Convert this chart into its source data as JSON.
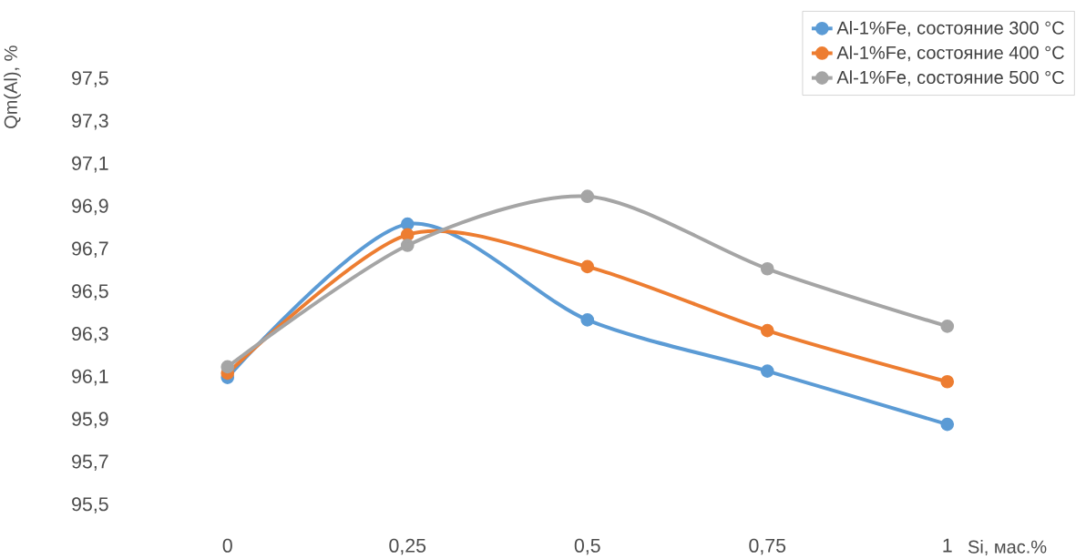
{
  "chart_data": {
    "type": "line",
    "xlabel": "Si, мас.%",
    "ylabel": "Qm(Al), %",
    "categories": [
      "0",
      "0,25",
      "0,5",
      "0,75",
      "1"
    ],
    "series": [
      {
        "name": "Al-1%Fe, состояние 300 °C",
        "color": "#5b9bd5",
        "values": [
          96.1,
          96.82,
          96.37,
          96.13,
          95.88
        ]
      },
      {
        "name": "Al-1%Fe, состояние 400 °C",
        "color": "#ed7d31",
        "values": [
          96.12,
          96.77,
          96.62,
          96.32,
          96.08
        ]
      },
      {
        "name": "Al-1%Fe, состояние 500 °C",
        "color": "#a5a5a5",
        "values": [
          96.15,
          96.72,
          96.95,
          96.61,
          96.34
        ]
      }
    ],
    "ylim": [
      95.5,
      97.5
    ],
    "yticks": [
      {
        "value": 95.5,
        "label": "95,5"
      },
      {
        "value": 95.7,
        "label": "95,7"
      },
      {
        "value": 95.9,
        "label": "95,9"
      },
      {
        "value": 96.1,
        "label": "96,1"
      },
      {
        "value": 96.3,
        "label": "96,3"
      },
      {
        "value": 96.5,
        "label": "96,5"
      },
      {
        "value": 96.7,
        "label": "96,7"
      },
      {
        "value": 96.9,
        "label": "96,9"
      },
      {
        "value": 97.1,
        "label": "97,1"
      },
      {
        "value": 97.3,
        "label": "97,3"
      },
      {
        "value": 97.5,
        "label": "97,5"
      }
    ],
    "legend": "top right",
    "marker": "circle"
  }
}
